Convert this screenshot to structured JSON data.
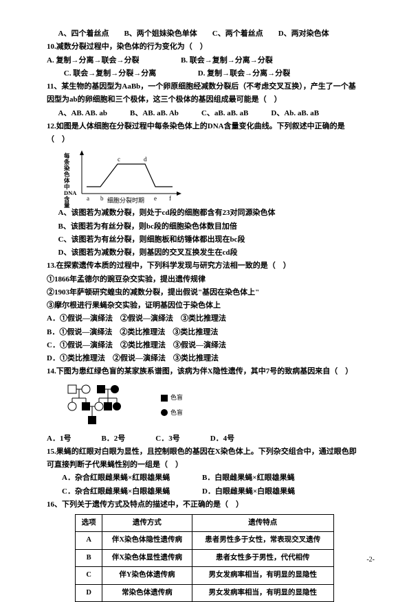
{
  "q9_opts": "A、四个着丝点　　B、两个姐妹染色单体　　C、两个着丝点　　D、两对染色体",
  "q10": "10.减数分裂过程中，染色体的行为变化为（　）",
  "q10_a": "A. 复制→分离→联会→分裂",
  "q10_b": "B. 联会→复制→分离→分裂",
  "q10_c": "C. 联会→复制→分裂→分离",
  "q10_d": "D. 复制→联会→分离→分裂",
  "q11": "11、某生物的基因型为AaBb，一个卵原细胞经减数分裂后（不考虑交叉互换），产生了一个基因型为ab的卵细胞和三个极体，这三个极体的基因组成最可能是（　）",
  "q11_opts": "A、AB. AB. ab　　　B、AB. aB. Ab　　　C、aB. aB. aB　　　D、Ab. aB. aB",
  "q12": "12.如图是人体细胞在分裂过程中每条染色体上的DNA含量变化曲线。下列叙述中正确的是（　）",
  "chart_ylabel": "每条染色体中 DNA含量",
  "chart_xlabel": "细胞分裂时期",
  "chart_pts": [
    "a",
    "b",
    "c",
    "d",
    "e",
    "f"
  ],
  "q12_a": "A、该图若为减数分裂，则处于cd段的细胞都含有23对同源染色体",
  "q12_b": "B、该图若为有丝分裂，则bc段的细胞染色体数目加倍",
  "q12_c": "C、该图若为有丝分裂，则细胞板和纺锤体都出现在bc段",
  "q12_d": "D、该图若为减数分裂，则基因的交叉互换发生在cd段",
  "q13": "13.在探索遗传本质的过程中，下列科学发现与研究方法相一致的是（　）",
  "q13_1": "①1866年孟德尔的豌豆杂交实验，提出遗传规律",
  "q13_2": "②1903年萨顿研究蝗虫的减数分裂，提出假说\"基因在染色体上\"",
  "q13_3": "③摩尔根进行果蝇杂交实验，证明基因位于染色体上",
  "q13_a": "A．①假说—演绎法　②假说—演绎法　③类比推理法",
  "q13_b": "B．①假说—演绎法　②类比推理法　③类比推理法",
  "q13_c": "C．①假说—演绎法　②类比推理法　③假说—演绎法",
  "q13_d": "D．①类比推理法　②假说—演绎法　③类比推理法",
  "q14": "14.下图为患红绿色盲的某家族系谱图，该病为伴X隐性遗传，其中7号的致病基因来自（　）",
  "legend_sq": "色盲",
  "legend_ci": "色盲",
  "q14_opts": "A．1号　　　　B．2号　　　　C．3号　　　　D．4号",
  "q15": "15.果蝇的红眼对白眼为显性，且控制眼色的基因在X染色体上。下列杂交组合中，通过眼色即可直接判断子代果蝇性别的一组是（　）",
  "q15_a": "A．杂合红眼雌果蝇×红眼雄果蝇",
  "q15_b": "B．白眼雌果蝇×红眼雄果蝇",
  "q15_c": "C．杂合红眼雌果蝇×白眼雄果蝇",
  "q15_d": "D．白眼雌果蝇×白眼雄果蝇",
  "q16": "16、下列关于遗传方式及特点的描述中，不正确的是（　）",
  "table": {
    "head": [
      "选项",
      "遗传方式",
      "遗传特点"
    ],
    "rows": [
      [
        "A",
        "伴X染色体隐性遗传病",
        "患者男性多于女性，常表现交叉遗传"
      ],
      [
        "B",
        "伴X染色体显性遗传病",
        "患者女性多于男性，代代相传"
      ],
      [
        "C",
        "伴Y染色体遗传病",
        "男女发病率相当，有明显的显隐性"
      ],
      [
        "D",
        "常染色体遗传病",
        "男女发病率相当，有明显的显隐性"
      ]
    ]
  },
  "pagenum": "-2-",
  "colors": {
    "line": "#000000",
    "bg": "#ffffff",
    "axis": "#000"
  }
}
